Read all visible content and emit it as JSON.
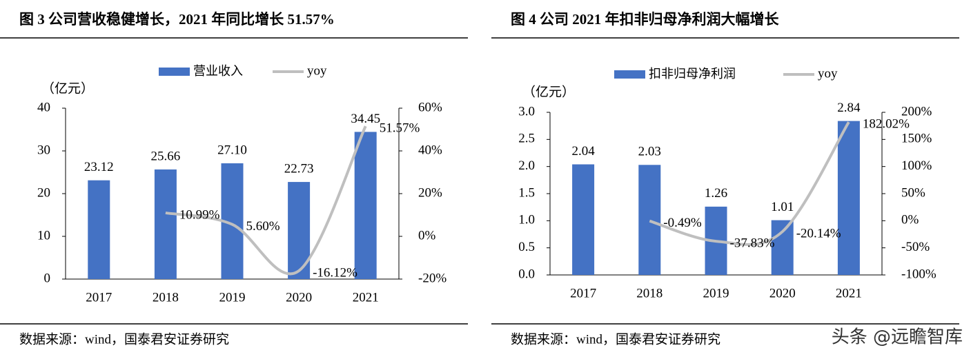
{
  "chart_data": [
    {
      "type": "bar",
      "title": "图 3 公司营收稳健增长，2021 年同比增长 51.57%",
      "unit_label": "（亿元）",
      "source": "数据来源：wind，国泰君安证券研究",
      "categories": [
        "2017",
        "2018",
        "2019",
        "2020",
        "2021"
      ],
      "series": [
        {
          "name": "营业收入",
          "color": "#4472c4",
          "type": "bar",
          "values": [
            23.12,
            25.66,
            27.1,
            22.73,
            34.45
          ],
          "value_labels": [
            "23.12",
            "25.66",
            "27.10",
            "22.73",
            "34.45"
          ]
        },
        {
          "name": "yoy",
          "color": "#bfbfbf",
          "type": "line",
          "axis": "y2",
          "values": [
            null,
            10.99,
            5.6,
            -16.12,
            51.57
          ],
          "value_labels": [
            null,
            "10.99%",
            "5.60%",
            "-16.12%",
            "51.57%"
          ]
        }
      ],
      "ylim": [
        0,
        40
      ],
      "yticks": [
        0,
        10,
        20,
        30,
        40
      ],
      "y2lim": [
        -20,
        60
      ],
      "y2ticks": [
        {
          "value": -20,
          "label": "-20%"
        },
        {
          "value": 0,
          "label": "0%"
        },
        {
          "value": 20,
          "label": "20%"
        },
        {
          "value": 40,
          "label": "40%"
        },
        {
          "value": 60,
          "label": "60%"
        }
      ],
      "legend": "top"
    },
    {
      "type": "bar",
      "title": "图 4 公司 2021 年扣非归母净利润大幅增长",
      "unit_label": "（亿元）",
      "source": "数据来源：wind，国泰君安证券研究",
      "categories": [
        "2017",
        "2018",
        "2019",
        "2020",
        "2021"
      ],
      "series": [
        {
          "name": "扣非归母净利润",
          "color": "#4472c4",
          "type": "bar",
          "values": [
            2.04,
            2.03,
            1.26,
            1.01,
            2.84
          ]
        },
        {
          "name": "yoy",
          "color": "#bfbfbf",
          "type": "line",
          "axis": "y2",
          "values": [
            null,
            -0.49,
            -37.83,
            -20.14,
            182.02
          ],
          "value_labels": [
            null,
            "-0.49%",
            "-37.83%",
            "-20.14%",
            "182.02%"
          ]
        }
      ],
      "ylim": [
        0,
        3
      ],
      "yticks": [
        {
          "value": 0,
          "label": "0.0"
        },
        {
          "value": 0.5,
          "label": "0.5"
        },
        {
          "value": 1,
          "label": "1.0"
        },
        {
          "value": 1.5,
          "label": "1.5"
        },
        {
          "value": 2,
          "label": "2.0"
        },
        {
          "value": 2.5,
          "label": "2.5"
        },
        {
          "value": 3,
          "label": "3.0"
        }
      ],
      "y2lim": [
        -100,
        200
      ],
      "y2ticks": [
        {
          "value": -100,
          "label": "-100%"
        },
        {
          "value": -50,
          "label": "-50%"
        },
        {
          "value": 0,
          "label": "0%"
        },
        {
          "value": 50,
          "label": "50%"
        },
        {
          "value": 100,
          "label": "100%"
        },
        {
          "value": 150,
          "label": "150%"
        },
        {
          "value": 200,
          "label": "200%"
        }
      ],
      "legend": "top"
    }
  ],
  "watermark": "头条 @远瞻智库"
}
